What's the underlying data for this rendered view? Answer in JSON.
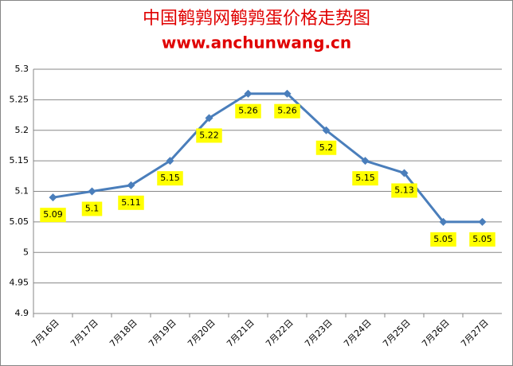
{
  "chart_data": {
    "type": "line",
    "title": "中国鹌鹑网鹌鹑蛋价格走势图",
    "subtitle": "www.anchunwang.cn",
    "categories": [
      "7月16日",
      "7月17日",
      "7月18日",
      "7月19日",
      "7月20日",
      "7月21日",
      "7月22日",
      "7月23日",
      "7月24日",
      "7月25日",
      "7月26日",
      "7月27日"
    ],
    "values": [
      5.09,
      5.1,
      5.11,
      5.15,
      5.22,
      5.26,
      5.26,
      5.2,
      5.15,
      5.13,
      5.05,
      5.05
    ],
    "color": "#4a7ebb",
    "label_color": "#ffff00",
    "ylim": [
      4.9,
      5.3
    ],
    "yticks": [
      4.9,
      4.95,
      5,
      5.05,
      5.1,
      5.15,
      5.2,
      5.25,
      5.3
    ],
    "grid": true
  }
}
